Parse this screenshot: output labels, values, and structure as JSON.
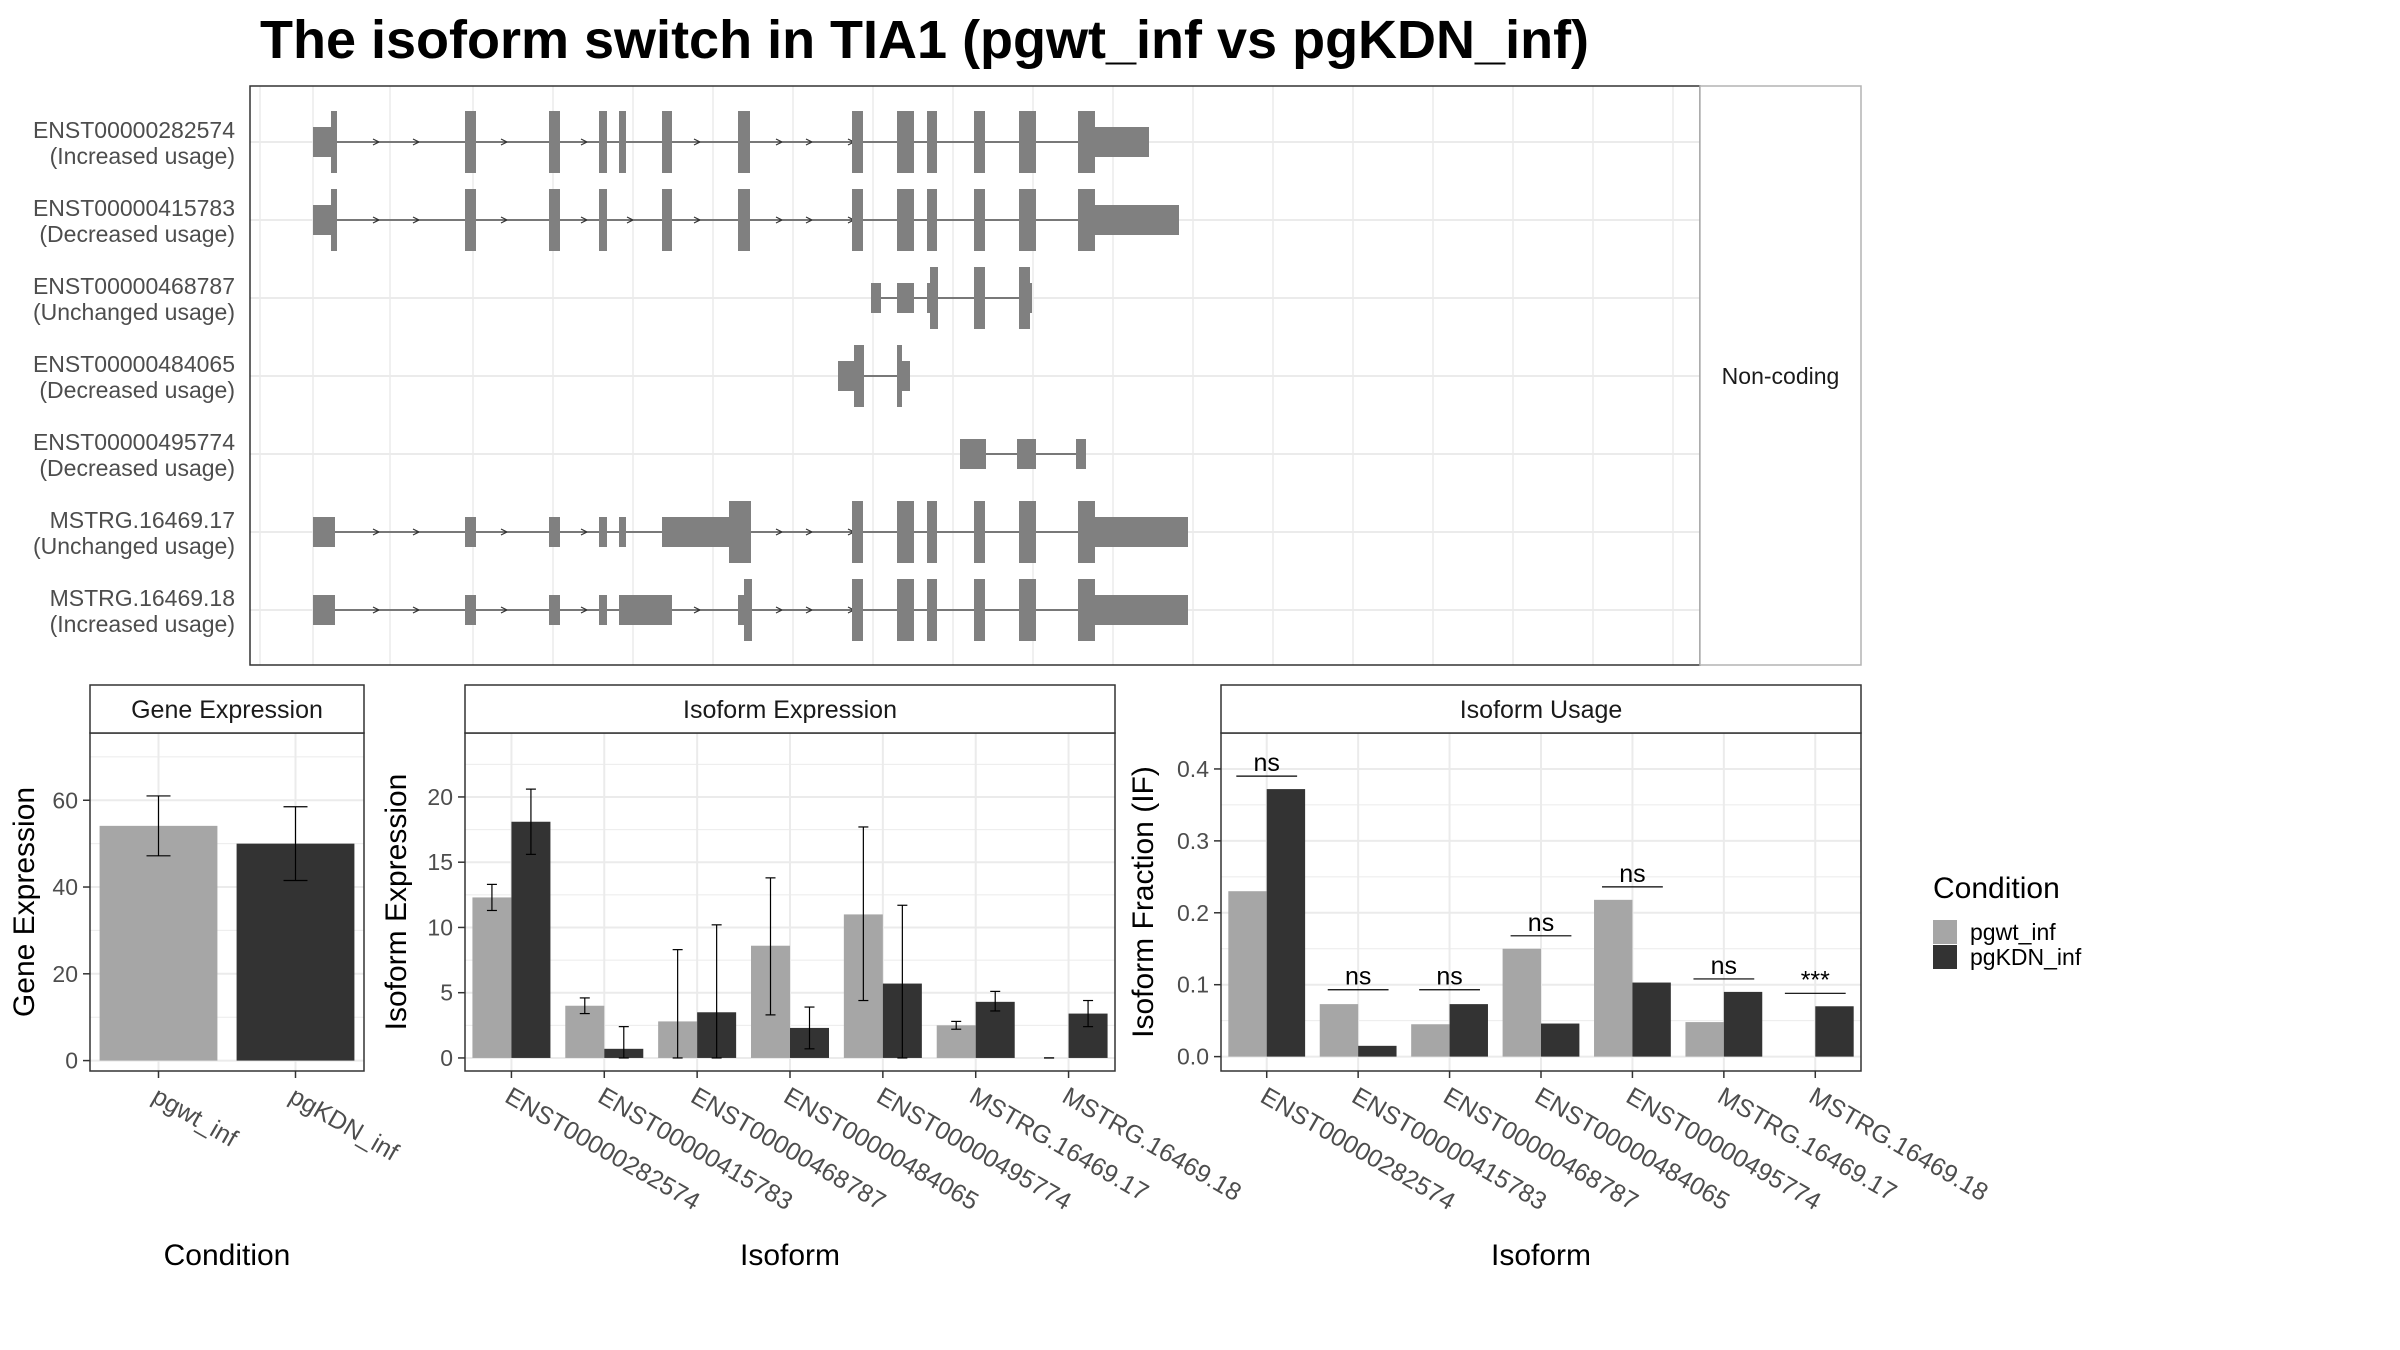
{
  "title": "The isoform switch in TIA1 (pgwt_inf vs pgKDN_inf)",
  "colors": {
    "pgwt_inf": "#a6a6a6",
    "pgKDN_inf": "#333333",
    "structure": "#808080",
    "grid": "#ebebeb",
    "panel_border": "#333333",
    "strip_border": "#b3b3b3"
  },
  "structure_panel": {
    "strip_label": "Non-coding",
    "transcripts": [
      {
        "id": "ENST00000282574",
        "usage": "(Increased usage)",
        "exons": [
          [
            0,
            18,
            "s"
          ],
          [
            18,
            24,
            "t"
          ],
          [
            152,
            163,
            "t"
          ],
          [
            236,
            247,
            "t"
          ],
          [
            286,
            294,
            "t"
          ],
          [
            306,
            313,
            "t"
          ],
          [
            349,
            359,
            "t"
          ],
          [
            425,
            437,
            "t"
          ],
          [
            539,
            550,
            "t"
          ],
          [
            584,
            601,
            "t"
          ],
          [
            614,
            624,
            "t"
          ],
          [
            661,
            672,
            "t"
          ],
          [
            706,
            723,
            "t"
          ],
          [
            765,
            782,
            "t"
          ],
          [
            782,
            836,
            "s"
          ]
        ],
        "arrows": [
          64,
          104,
          192,
          272,
          385,
          467,
          497,
          539
        ]
      },
      {
        "id": "ENST00000415783",
        "usage": "(Decreased usage)",
        "exons": [
          [
            0,
            18,
            "s"
          ],
          [
            18,
            24,
            "t"
          ],
          [
            152,
            163,
            "t"
          ],
          [
            236,
            247,
            "t"
          ],
          [
            286,
            294,
            "t"
          ],
          [
            349,
            359,
            "t"
          ],
          [
            425,
            437,
            "t"
          ],
          [
            539,
            550,
            "t"
          ],
          [
            584,
            601,
            "t"
          ],
          [
            614,
            624,
            "t"
          ],
          [
            661,
            672,
            "t"
          ],
          [
            706,
            723,
            "t"
          ],
          [
            765,
            782,
            "t"
          ],
          [
            782,
            866,
            "s"
          ]
        ],
        "arrows": [
          64,
          104,
          192,
          272,
          318,
          385,
          467,
          497,
          539
        ]
      },
      {
        "id": "ENST00000468787",
        "usage": "(Unchanged usage)",
        "exons": [
          [
            558,
            568,
            "s"
          ],
          [
            584,
            601,
            "s"
          ],
          [
            614,
            617,
            "s"
          ],
          [
            617,
            625,
            "t"
          ],
          [
            661,
            672,
            "t"
          ],
          [
            706,
            717,
            "t"
          ],
          [
            717,
            719,
            "s"
          ]
        ],
        "arrows": []
      },
      {
        "id": "ENST00000484065",
        "usage": "(Decreased usage)",
        "exons": [
          [
            525,
            541,
            "s"
          ],
          [
            541,
            551,
            "t"
          ],
          [
            584,
            589,
            "t"
          ],
          [
            589,
            597,
            "s"
          ]
        ],
        "arrows": []
      },
      {
        "id": "ENST00000495774",
        "usage": "(Decreased usage)",
        "exons": [
          [
            647,
            673,
            "s"
          ],
          [
            704,
            723,
            "s"
          ],
          [
            763,
            773,
            "s"
          ]
        ],
        "arrows": []
      },
      {
        "id": "MSTRG.16469.17",
        "usage": "(Unchanged usage)",
        "exons": [
          [
            0,
            22,
            "s"
          ],
          [
            152,
            163,
            "s"
          ],
          [
            236,
            247,
            "s"
          ],
          [
            286,
            294,
            "s"
          ],
          [
            306,
            313,
            "s"
          ],
          [
            349,
            416,
            "s"
          ],
          [
            416,
            438,
            "t"
          ],
          [
            539,
            550,
            "t"
          ],
          [
            584,
            601,
            "t"
          ],
          [
            614,
            624,
            "t"
          ],
          [
            661,
            672,
            "t"
          ],
          [
            706,
            723,
            "t"
          ],
          [
            765,
            782,
            "t"
          ],
          [
            782,
            875,
            "s"
          ]
        ],
        "arrows": [
          64,
          104,
          192,
          272,
          467,
          497,
          539
        ]
      },
      {
        "id": "MSTRG.16469.18",
        "usage": "(Increased usage)",
        "exons": [
          [
            0,
            22,
            "s"
          ],
          [
            152,
            163,
            "s"
          ],
          [
            236,
            247,
            "s"
          ],
          [
            286,
            294,
            "s"
          ],
          [
            306,
            359,
            "s"
          ],
          [
            425,
            431,
            "s"
          ],
          [
            431,
            439,
            "t"
          ],
          [
            539,
            550,
            "t"
          ],
          [
            584,
            601,
            "t"
          ],
          [
            614,
            624,
            "t"
          ],
          [
            661,
            672,
            "t"
          ],
          [
            706,
            723,
            "t"
          ],
          [
            765,
            782,
            "t"
          ],
          [
            782,
            875,
            "s"
          ]
        ],
        "arrows": [
          64,
          104,
          192,
          272,
          385,
          467,
          497,
          539
        ]
      }
    ]
  },
  "chart_data": [
    {
      "type": "bar",
      "title": "Gene Expression",
      "xlabel": "Condition",
      "ylabel": "Gene Expression",
      "categories": [
        "pgwt_inf",
        "pgKDN_inf"
      ],
      "values": [
        54.1,
        50.0
      ],
      "errors": [
        [
          47.2,
          61.0
        ],
        [
          41.5,
          58.5
        ]
      ],
      "ylim": [
        -2.4,
        75.5
      ],
      "yticks": [
        0,
        20,
        40,
        60
      ]
    },
    {
      "type": "bar",
      "title": "Isoform Expression",
      "xlabel": "Isoform",
      "ylabel": "Isoform Expression",
      "categories": [
        "ENST00000282574",
        "ENST00000415783",
        "ENST00000468787",
        "ENST00000484065",
        "ENST00000495774",
        "MSTRG.16469.17",
        "MSTRG.16469.18"
      ],
      "series": [
        {
          "name": "pgwt_inf",
          "values": [
            12.3,
            4.0,
            2.8,
            8.6,
            11.0,
            2.5,
            0.0
          ],
          "errors": [
            [
              11.3,
              13.3
            ],
            [
              3.4,
              4.6
            ],
            [
              0.0,
              8.3
            ],
            [
              3.3,
              13.8
            ],
            [
              4.4,
              17.7
            ],
            [
              2.2,
              2.8
            ],
            [
              0.0,
              0.0
            ]
          ]
        },
        {
          "name": "pgKDN_inf",
          "values": [
            18.1,
            0.7,
            3.5,
            2.3,
            5.7,
            4.3,
            3.4
          ],
          "errors": [
            [
              15.6,
              20.6
            ],
            [
              0.0,
              2.4
            ],
            [
              0.0,
              10.2
            ],
            [
              0.7,
              3.9
            ],
            [
              0.0,
              11.7
            ],
            [
              3.6,
              5.1
            ],
            [
              2.4,
              4.4
            ]
          ]
        }
      ],
      "ylim": [
        -1.0,
        24.9
      ],
      "yticks": [
        0,
        5,
        10,
        15,
        20
      ]
    },
    {
      "type": "bar",
      "title": "Isoform Usage",
      "xlabel": "Isoform",
      "ylabel": "Isoform Fraction (IF)",
      "categories": [
        "ENST00000282574",
        "ENST00000415783",
        "ENST00000468787",
        "ENST00000484065",
        "ENST00000495774",
        "MSTRG.16469.17",
        "MSTRG.16469.18"
      ],
      "series": [
        {
          "name": "pgwt_inf",
          "values": [
            0.23,
            0.073,
            0.045,
            0.15,
            0.218,
            0.048,
            0.0
          ]
        },
        {
          "name": "pgKDN_inf",
          "values": [
            0.372,
            0.015,
            0.073,
            0.046,
            0.103,
            0.09,
            0.07
          ]
        }
      ],
      "significance": [
        {
          "label": "ns",
          "y": 0.39
        },
        {
          "label": "ns",
          "y": 0.093
        },
        {
          "label": "ns",
          "y": 0.093
        },
        {
          "label": "ns",
          "y": 0.168
        },
        {
          "label": "ns",
          "y": 0.236
        },
        {
          "label": "ns",
          "y": 0.108
        },
        {
          "label": "***",
          "y": 0.088
        }
      ],
      "ylim": [
        -0.02,
        0.45
      ],
      "yticks": [
        "0.0",
        "0.1",
        "0.2",
        "0.3",
        "0.4"
      ]
    }
  ],
  "legend": {
    "title": "Condition",
    "placement": "right",
    "items": [
      "pgwt_inf",
      "pgKDN_inf"
    ]
  }
}
